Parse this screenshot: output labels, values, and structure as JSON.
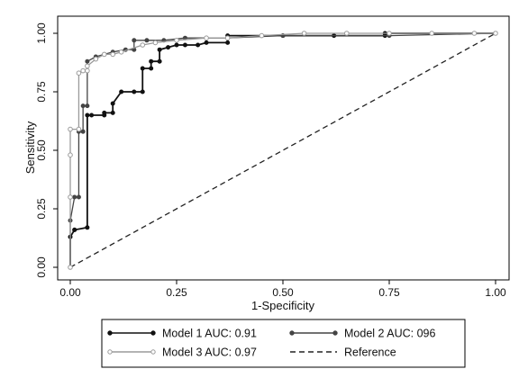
{
  "chart_data": {
    "type": "line",
    "title": "",
    "xlabel": "1-Specificity",
    "ylabel": "Sensitivity",
    "xlim": [
      0,
      1
    ],
    "ylim": [
      0,
      1
    ],
    "xticks": [
      "0.00",
      "0.25",
      "0.50",
      "0.75",
      "1.00"
    ],
    "yticks": [
      "0.00",
      "0.25",
      "0.50",
      "0.75",
      "1.00"
    ],
    "grid": false,
    "legend_position": "bottom",
    "series": [
      {
        "name": "Model 1 AUC: 0.91",
        "color": "#111111",
        "marker": "dot",
        "dash": "solid",
        "x": [
          0.0,
          0.0,
          0.01,
          0.01,
          0.04,
          0.04,
          0.05,
          0.08,
          0.08,
          0.1,
          0.1,
          0.12,
          0.15,
          0.17,
          0.17,
          0.19,
          0.19,
          0.21,
          0.21,
          0.23,
          0.25,
          0.27,
          0.3,
          0.32,
          0.37,
          0.37,
          0.5,
          0.62,
          0.74,
          0.74,
          1.0
        ],
        "y": [
          0.0,
          0.13,
          0.16,
          0.16,
          0.17,
          0.65,
          0.65,
          0.65,
          0.66,
          0.66,
          0.7,
          0.75,
          0.75,
          0.75,
          0.85,
          0.85,
          0.88,
          0.88,
          0.93,
          0.94,
          0.95,
          0.95,
          0.95,
          0.96,
          0.96,
          0.99,
          0.99,
          0.99,
          0.99,
          1.0,
          1.0
        ]
      },
      {
        "name": "Model 2 AUC: 096",
        "color": "#444444",
        "marker": "dot",
        "dash": "solid",
        "x": [
          0.0,
          0.0,
          0.01,
          0.02,
          0.02,
          0.03,
          0.03,
          0.04,
          0.04,
          0.06,
          0.08,
          0.1,
          0.13,
          0.15,
          0.15,
          0.18,
          0.22,
          0.27,
          0.37,
          0.5,
          0.75,
          1.0
        ],
        "y": [
          0.0,
          0.2,
          0.3,
          0.3,
          0.58,
          0.58,
          0.69,
          0.69,
          0.88,
          0.9,
          0.91,
          0.92,
          0.93,
          0.93,
          0.97,
          0.97,
          0.97,
          0.98,
          0.98,
          0.99,
          0.99,
          1.0
        ]
      },
      {
        "name": "Model 3 AUC: 0.97",
        "color": "#9a9a9a",
        "marker": "circle",
        "dash": "solid",
        "x": [
          0.0,
          0.0,
          0.0,
          0.0,
          0.02,
          0.02,
          0.03,
          0.04,
          0.04,
          0.06,
          0.08,
          0.1,
          0.12,
          0.17,
          0.2,
          0.25,
          0.32,
          0.37,
          0.45,
          0.55,
          0.65,
          0.75,
          0.85,
          0.95,
          1.0
        ],
        "y": [
          0.0,
          0.3,
          0.48,
          0.59,
          0.59,
          0.83,
          0.84,
          0.84,
          0.86,
          0.89,
          0.91,
          0.91,
          0.92,
          0.95,
          0.96,
          0.97,
          0.98,
          0.98,
          0.99,
          1.0,
          1.0,
          1.0,
          1.0,
          1.0,
          1.0
        ]
      },
      {
        "name": "Reference",
        "color": "#222222",
        "marker": "none",
        "dash": "dashed",
        "x": [
          0,
          1
        ],
        "y": [
          0,
          1
        ]
      }
    ]
  }
}
